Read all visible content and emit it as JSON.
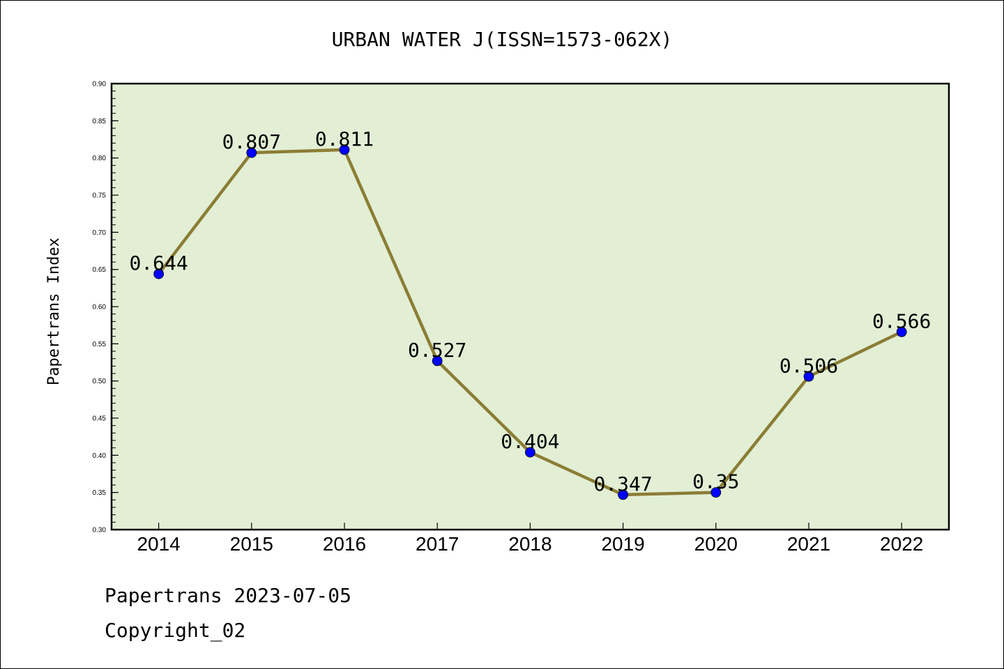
{
  "chart_data": {
    "type": "line",
    "title": "URBAN WATER J(ISSN=1573-062X)",
    "xlabel": "",
    "ylabel": "Papertrans Index",
    "categories": [
      "2014",
      "2015",
      "2016",
      "2017",
      "2018",
      "2019",
      "2020",
      "2021",
      "2022"
    ],
    "series": [
      {
        "values": [
          0.644,
          0.807,
          0.811,
          0.527,
          0.404,
          0.347,
          0.35,
          0.506,
          0.566
        ],
        "data_labels": [
          "0.644",
          "0.807",
          "0.811",
          "0.527",
          "0.404",
          "0.347",
          "0.35",
          "0.506",
          "0.566"
        ]
      }
    ],
    "ylim": [
      0.3,
      0.9
    ],
    "yticks": [
      "0.30",
      "0.35",
      "0.40",
      "0.45",
      "0.50",
      "0.55",
      "0.60",
      "0.65",
      "0.70",
      "0.75",
      "0.80",
      "0.85",
      "0.90"
    ],
    "grid": false,
    "colors": {
      "plot_background": "#e2efd5",
      "line": "#8b7d35",
      "marker": "#0000ff"
    }
  },
  "footer": {
    "line1": "Papertrans 2023-07-05",
    "line2": "Copyright_02"
  }
}
